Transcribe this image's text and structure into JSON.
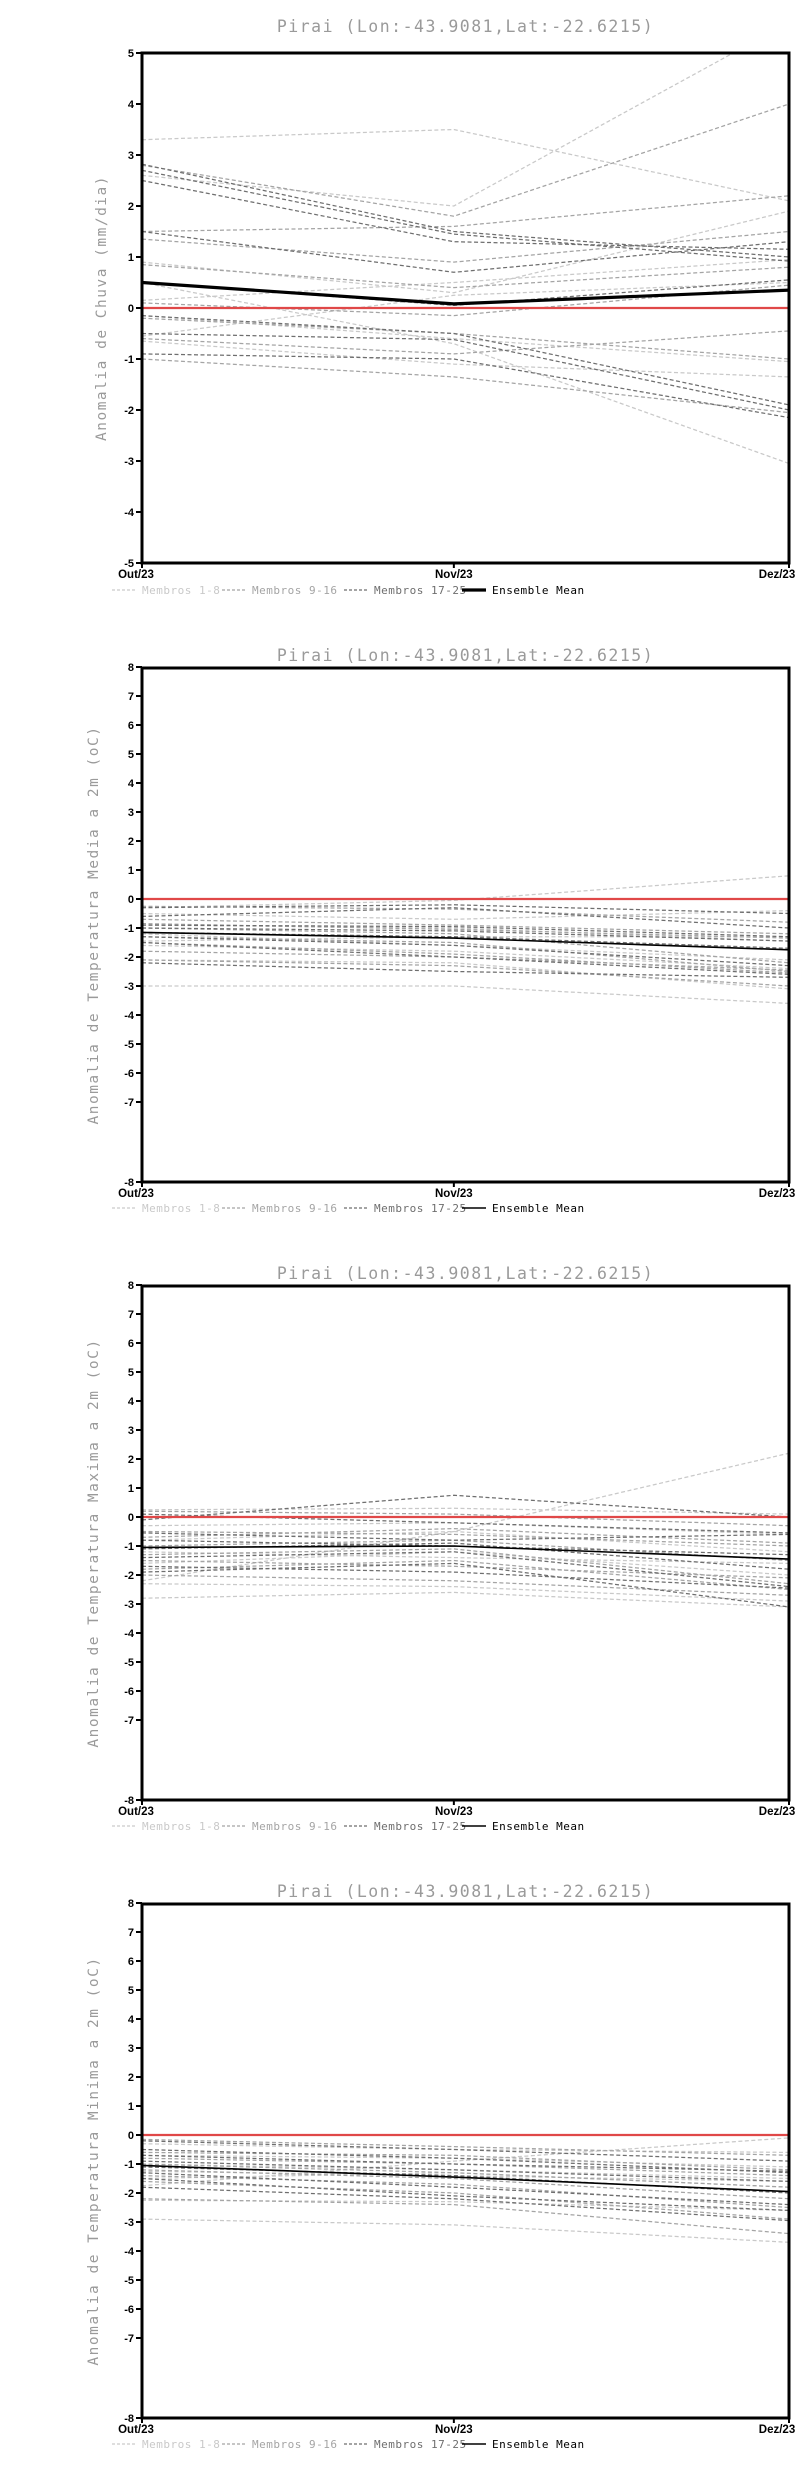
{
  "page": {
    "background": "#ffffff"
  },
  "colors": {
    "axis": "#000000",
    "title_gray": "#9a9a9a",
    "zero_line_red": "#e04848",
    "members_1_8": "#c9c9c9",
    "members_9_16": "#a4a4a4",
    "members_17_25": "#6e6e6e",
    "ensemble_mean": "#000000"
  },
  "legend": {
    "items": [
      {
        "label": "Membros 1-8",
        "color": "#c9c9c9",
        "style": "dashed"
      },
      {
        "label": "Membros 9-16",
        "color": "#a4a4a4",
        "style": "dashed"
      },
      {
        "label": "Membros 17-25",
        "color": "#6e6e6e",
        "style": "dashed"
      },
      {
        "label": "Ensemble Mean",
        "color": "#000000",
        "style": "solid"
      }
    ],
    "position": "bottom"
  },
  "chart_data": [
    {
      "type": "line",
      "title": "Pirai (Lon:-43.9081,Lat:-22.6215)",
      "ylabel": "Anomalia de Chuva (mm/dia)",
      "xlabel": "",
      "x_categories": [
        "Out/23",
        "Nov/23",
        "Dez/23"
      ],
      "ylim": [
        -5,
        5
      ],
      "ytick_step": 1,
      "ytick_labels": [
        "5",
        "4",
        "3",
        "2",
        "1",
        "0",
        "-1",
        "-2",
        "-3",
        "-4",
        "-5"
      ],
      "grid": false,
      "zero_line": 0,
      "ensemble_mean": [
        0.5,
        0.08,
        0.35
      ],
      "series": [
        {
          "name": "Membros 1-8",
          "color": "#c9c9c9",
          "lines": [
            [
              3.3,
              3.5,
              2.1
            ],
            [
              2.6,
              2.0,
              5.6
            ],
            [
              0.9,
              0.3,
              1.9
            ],
            [
              0.5,
              -0.7,
              -3.05
            ],
            [
              0.15,
              0.5,
              0.95
            ],
            [
              -0.15,
              -0.6,
              -1.05
            ],
            [
              -0.55,
              0.25,
              0.5
            ],
            [
              -0.65,
              -1.1,
              -1.35
            ]
          ]
        },
        {
          "name": "Membros 9-16",
          "color": "#a4a4a4",
          "lines": [
            [
              2.8,
              1.8,
              4.0
            ],
            [
              1.5,
              1.6,
              2.2
            ],
            [
              1.35,
              0.9,
              1.5
            ],
            [
              0.85,
              0.4,
              0.8
            ],
            [
              0.1,
              -0.15,
              0.45
            ],
            [
              -0.2,
              -0.5,
              -1.0
            ],
            [
              -0.6,
              -0.9,
              -0.45
            ],
            [
              -1.0,
              -1.35,
              -2.05
            ]
          ]
        },
        {
          "name": "Membros 17-25",
          "color": "#6e6e6e",
          "lines": [
            [
              2.82,
              1.5,
              1.0
            ],
            [
              2.7,
              1.45,
              0.92
            ],
            [
              2.5,
              1.3,
              1.15
            ],
            [
              1.5,
              0.7,
              1.3
            ],
            [
              0.5,
              0.05,
              0.55
            ],
            [
              -0.15,
              -0.5,
              -1.9
            ],
            [
              -0.5,
              -0.62,
              -2.0
            ],
            [
              -0.9,
              -1.0,
              -2.15
            ]
          ]
        }
      ]
    },
    {
      "type": "line",
      "title": "Pirai (Lon:-43.9081,Lat:-22.6215)",
      "ylabel": "Anomalia de Temperatura Media a 2m (oC)",
      "xlabel": "",
      "x_categories": [
        "Out/23",
        "Nov/23",
        "Dez/23"
      ],
      "ylim": [
        -8,
        8
      ],
      "ytick_step": 1,
      "ytick_labels": [
        "8",
        "7",
        "6",
        "5",
        "4",
        "3",
        "2",
        "1",
        "0",
        "-1",
        "-2",
        "-3",
        "-4",
        "-5",
        "-6",
        "-7",
        "-8"
      ],
      "grid": false,
      "zero_line": 0,
      "ensemble_mean": [
        -1.15,
        -1.35,
        -1.75
      ],
      "series": [
        {
          "name": "Membros 1-8",
          "color": "#c9c9c9",
          "lines": [
            [
              -0.3,
              -0.05,
              0.8
            ],
            [
              -0.5,
              -0.7,
              -0.4
            ],
            [
              -0.9,
              -1.0,
              -1.45
            ],
            [
              -1.2,
              -1.6,
              -2.1
            ],
            [
              -1.45,
              -1.3,
              -1.3
            ],
            [
              -1.6,
              -1.8,
              -2.4
            ],
            [
              -2.1,
              -2.2,
              -3.1
            ],
            [
              -3.0,
              -3.0,
              -3.6
            ]
          ]
        },
        {
          "name": "Membros 9-16",
          "color": "#a4a4a4",
          "lines": [
            [
              -0.25,
              -0.35,
              -0.8
            ],
            [
              -0.7,
              -0.9,
              -1.2
            ],
            [
              -0.85,
              -1.05,
              -1.35
            ],
            [
              -1.0,
              -1.2,
              -2.2
            ],
            [
              -1.3,
              -1.5,
              -2.5
            ],
            [
              -1.5,
              -1.9,
              -2.55
            ],
            [
              -1.8,
              -2.0,
              -2.45
            ],
            [
              -2.1,
              -2.3,
              -3.0
            ]
          ]
        },
        {
          "name": "Membros 17-25",
          "color": "#6e6e6e",
          "lines": [
            [
              -0.3,
              -0.2,
              -0.5
            ],
            [
              -0.6,
              -0.3,
              -1.0
            ],
            [
              -0.9,
              -0.95,
              -1.3
            ],
            [
              -1.0,
              -1.1,
              -1.45
            ],
            [
              -1.15,
              -1.3,
              -1.7
            ],
            [
              -1.3,
              -1.6,
              -2.3
            ],
            [
              -1.5,
              -2.0,
              -2.6
            ],
            [
              -2.2,
              -2.5,
              -2.7
            ]
          ]
        }
      ]
    },
    {
      "type": "line",
      "title": "Pirai (Lon:-43.9081,Lat:-22.6215)",
      "ylabel": "Anomalia de Temperatura Maxima a 2m (oC)",
      "xlabel": "",
      "x_categories": [
        "Out/23",
        "Nov/23",
        "Dez/23"
      ],
      "ylim": [
        -8,
        8
      ],
      "ytick_step": 1,
      "ytick_labels": [
        "8",
        "7",
        "6",
        "5",
        "4",
        "3",
        "2",
        "1",
        "0",
        "-1",
        "-2",
        "-3",
        "-4",
        "-5",
        "-6",
        "-7",
        "-8"
      ],
      "grid": false,
      "zero_line": 0,
      "ensemble_mean": [
        -1.05,
        -1.0,
        -1.45
      ],
      "series": [
        {
          "name": "Membros 1-8",
          "color": "#c9c9c9",
          "lines": [
            [
              -2.2,
              -0.5,
              2.2
            ],
            [
              0.25,
              0.3,
              0.1
            ],
            [
              -0.3,
              -0.2,
              -0.6
            ],
            [
              -0.8,
              -0.5,
              -1.2
            ],
            [
              -1.2,
              -1.4,
              -1.6
            ],
            [
              -1.6,
              -1.2,
              -2.0
            ],
            [
              -2.3,
              -2.4,
              -2.9
            ],
            [
              -2.8,
              -2.6,
              -3.1
            ]
          ]
        },
        {
          "name": "Membros 9-16",
          "color": "#a4a4a4",
          "lines": [
            [
              0.2,
              0.1,
              -0.3
            ],
            [
              -0.5,
              -0.6,
              -1.0
            ],
            [
              -0.7,
              -0.4,
              -0.9
            ],
            [
              -1.0,
              -0.8,
              -1.5
            ],
            [
              -1.3,
              -1.1,
              -2.3
            ],
            [
              -1.5,
              -1.7,
              -2.1
            ],
            [
              -1.8,
              -1.5,
              -2.5
            ],
            [
              -2.0,
              -2.2,
              -2.7
            ]
          ]
        },
        {
          "name": "Membros 17-25",
          "color": "#6e6e6e",
          "lines": [
            [
              -0.1,
              0.75,
              0.0
            ],
            [
              0.1,
              -0.2,
              -0.55
            ],
            [
              -0.55,
              -0.8,
              -0.6
            ],
            [
              -0.8,
              -1.0,
              -1.3
            ],
            [
              -1.1,
              -0.9,
              -1.8
            ],
            [
              -1.4,
              -1.2,
              -2.4
            ],
            [
              -1.7,
              -1.9,
              -2.45
            ],
            [
              -1.9,
              -1.6,
              -3.1
            ]
          ]
        }
      ]
    },
    {
      "type": "line",
      "title": "Pirai (Lon:-43.9081,Lat:-22.6215)",
      "ylabel": "Anomalia de Temperatura Minima a 2m (oC)",
      "xlabel": "",
      "x_categories": [
        "Out/23",
        "Nov/23",
        "Dez/23"
      ],
      "ylim": [
        -8,
        8
      ],
      "ytick_step": 1,
      "ytick_labels": [
        "8",
        "7",
        "6",
        "5",
        "4",
        "3",
        "2",
        "1",
        "0",
        "-1",
        "-2",
        "-3",
        "-4",
        "-5",
        "-6",
        "-7",
        "-8"
      ],
      "grid": false,
      "zero_line": 0,
      "ensemble_mean": [
        -1.05,
        -1.45,
        -1.95
      ],
      "series": [
        {
          "name": "Membros 1-8",
          "color": "#c9c9c9",
          "lines": [
            [
              -1.75,
              -0.9,
              -0.1
            ],
            [
              -0.3,
              -0.5,
              -0.6
            ],
            [
              -0.7,
              -0.8,
              -1.1
            ],
            [
              -1.0,
              -1.2,
              -1.5
            ],
            [
              -1.25,
              -1.4,
              -1.6
            ],
            [
              -1.5,
              -1.3,
              -1.8
            ],
            [
              -2.25,
              -2.3,
              -2.6
            ],
            [
              -2.9,
              -3.1,
              -3.7
            ]
          ]
        },
        {
          "name": "Membros 9-16",
          "color": "#a4a4a4",
          "lines": [
            [
              -0.15,
              -0.4,
              -0.7
            ],
            [
              -0.6,
              -0.7,
              -1.2
            ],
            [
              -0.8,
              -1.0,
              -1.4
            ],
            [
              -1.0,
              -1.3,
              -1.8
            ],
            [
              -1.2,
              -1.5,
              -2.2
            ],
            [
              -1.4,
              -1.7,
              -2.5
            ],
            [
              -1.6,
              -2.0,
              -2.9
            ],
            [
              -2.2,
              -2.4,
              -3.4
            ]
          ]
        },
        {
          "name": "Membros 17-25",
          "color": "#6e6e6e",
          "lines": [
            [
              -0.2,
              -0.5,
              -0.9
            ],
            [
              -0.5,
              -0.8,
              -1.3
            ],
            [
              -0.7,
              -1.0,
              -1.25
            ],
            [
              -0.9,
              -1.2,
              -1.6
            ],
            [
              -1.1,
              -1.4,
              -2.0
            ],
            [
              -1.3,
              -1.8,
              -2.4
            ],
            [
              -1.5,
              -2.1,
              -2.6
            ],
            [
              -1.8,
              -2.2,
              -2.95
            ]
          ]
        }
      ]
    }
  ]
}
